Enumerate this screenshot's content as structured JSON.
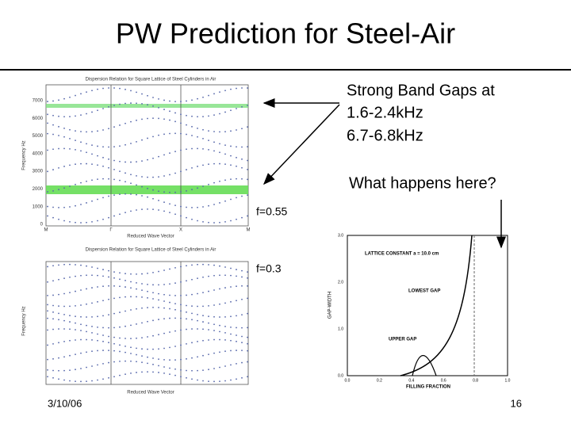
{
  "header": {
    "title": "PW Prediction for Steel-Air"
  },
  "annotation": {
    "lines": [
      "Strong Band Gaps at",
      "1.6-2.4kHz",
      "6.7-6.8kHz"
    ],
    "question": "What happens here?"
  },
  "plots": {
    "top": {
      "title": "Dispersion Relation for Square Lattice of Steel Cylinders in Air",
      "y_label": "Frequency Hz",
      "x_label": "Reduced Wave Vector",
      "y_ticks": [
        "7000",
        "6000",
        "5000",
        "4000",
        "3000",
        "2000",
        "1000",
        "0"
      ],
      "x_ticks": [
        "M",
        "Γ",
        "X",
        "M"
      ],
      "fraction": "f=0.55"
    },
    "bottom": {
      "title": "Dispersion Relation for Square Lattice of Steel Cylinders in Air",
      "y_label": "Frequency Hz",
      "x_label": "Reduced Wave Vector",
      "fraction": "f=0.3"
    },
    "gap": {
      "constant": "LATTICE CONSTANT a = 10.0 cm",
      "lowest": "LOWEST GAP",
      "upper": "UPPER GAP",
      "x_label": "FILLING FRACTION",
      "y_label": "GAP-WIDTH",
      "x_ticks": [
        "0.0",
        "0.2",
        "0.4",
        "0.6",
        "0.8",
        "1.0"
      ],
      "y_ticks": [
        "3.0",
        "2.0",
        "1.0",
        "0.0"
      ]
    }
  },
  "footer": {
    "date": "3/10/06",
    "page": "16"
  }
}
